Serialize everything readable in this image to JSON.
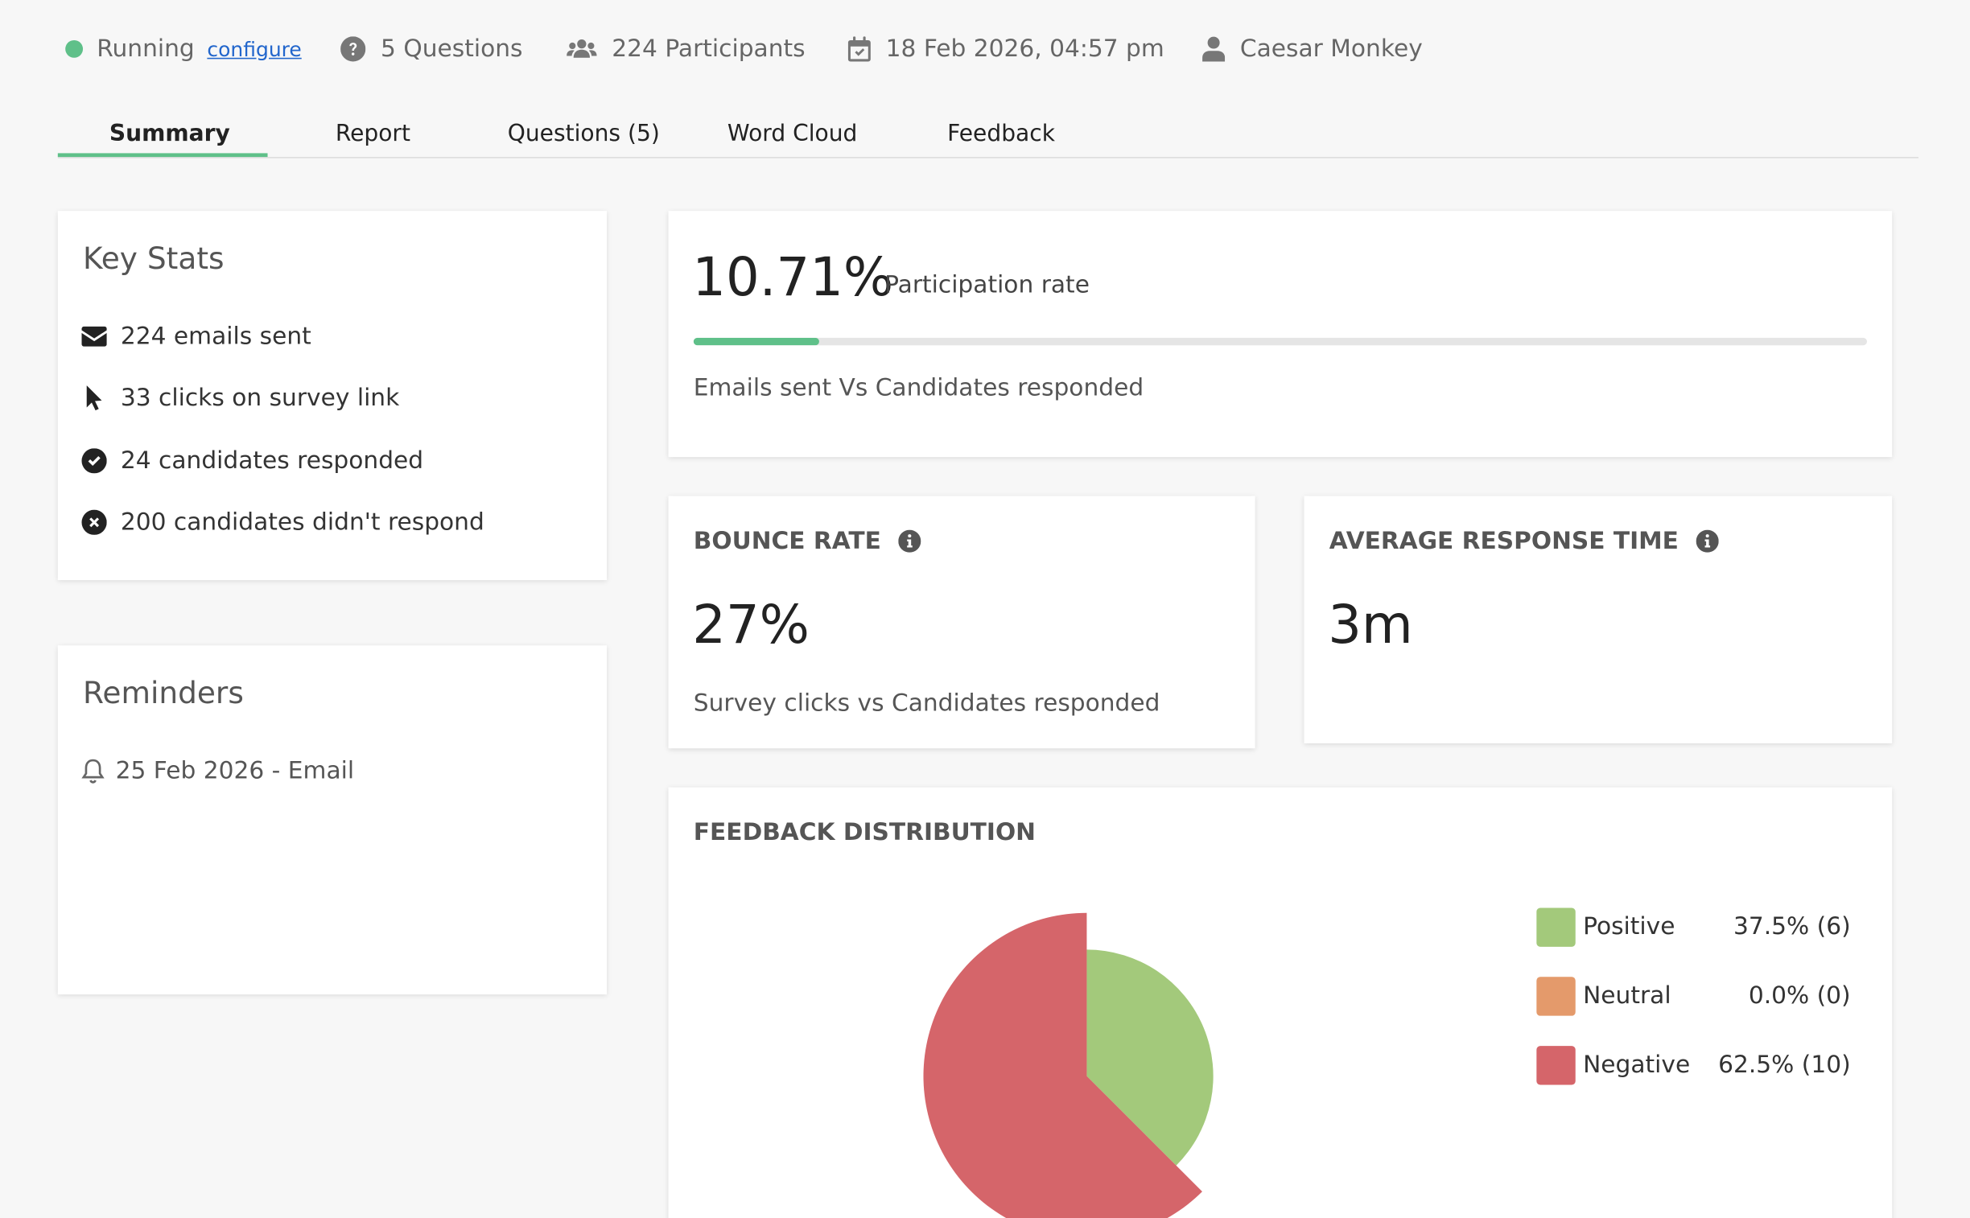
{
  "header": {
    "status": "Running",
    "configure_label": "configure",
    "questions": "5 Questions",
    "participants": "224 Participants",
    "datetime": "18 Feb 2026, 04:57 pm",
    "owner": "Caesar Monkey"
  },
  "tabs": [
    {
      "label": "Summary",
      "active": true
    },
    {
      "label": "Report"
    },
    {
      "label": "Questions (5)"
    },
    {
      "label": "Word Cloud"
    },
    {
      "label": "Feedback"
    }
  ],
  "key_stats": {
    "title": "Key Stats",
    "items": [
      {
        "icon": "envelope-icon",
        "text": "224 emails sent"
      },
      {
        "icon": "cursor-icon",
        "text": "33 clicks on survey link"
      },
      {
        "icon": "check-circle-icon",
        "text": "24 candidates responded"
      },
      {
        "icon": "x-circle-icon",
        "text": "200 candidates didn't respond"
      }
    ]
  },
  "reminders": {
    "title": "Reminders",
    "items": [
      {
        "icon": "bell-icon",
        "text": "25 Feb 2026 - Email"
      }
    ]
  },
  "participation": {
    "value": "10.71%",
    "label": "Participation rate",
    "progress": 0.1071,
    "caption": "Emails sent Vs Candidates responded"
  },
  "bounce_rate": {
    "title": "BOUNCE RATE",
    "value": "27%",
    "caption": "Survey clicks vs Candidates responded"
  },
  "avg_response": {
    "title": "AVERAGE RESPONSE TIME",
    "value": "3m"
  },
  "feedback": {
    "title": "FEEDBACK DISTRIBUTION"
  },
  "chart_data": {
    "type": "pie",
    "categories": [
      "Positive",
      "Neutral",
      "Negative"
    ],
    "values": [
      6,
      0,
      10
    ],
    "percent_labels": [
      "37.5% (6)",
      "0.0% (0)",
      "62.5% (10)"
    ],
    "colors": [
      "#a3c97b",
      "#e49a6b",
      "#d5656a"
    ],
    "legend": "right"
  },
  "colors": {
    "accent": "#5fc089",
    "link": "#2266cc"
  }
}
